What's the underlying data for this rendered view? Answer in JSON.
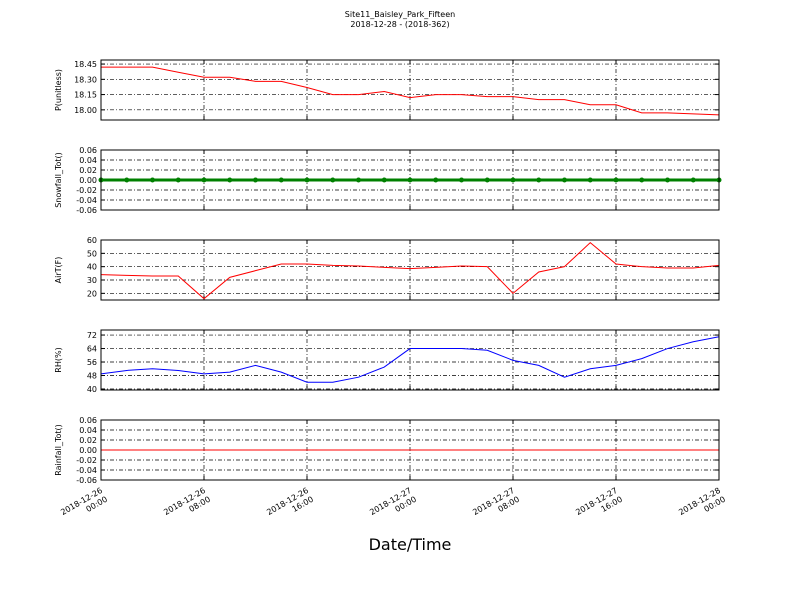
{
  "chart_data": [
    {
      "type": "line",
      "title": "Site11_Baisley_Park_Fifteen",
      "subtitle": "2018-12-28 - (2018-362)",
      "ylabel": "P(unitless)",
      "x": [
        "2018-12-26 00:00",
        "2018-12-26 02:00",
        "2018-12-26 04:00",
        "2018-12-26 06:00",
        "2018-12-26 08:00",
        "2018-12-26 10:00",
        "2018-12-26 12:00",
        "2018-12-26 14:00",
        "2018-12-26 16:00",
        "2018-12-26 18:00",
        "2018-12-26 20:00",
        "2018-12-26 22:00",
        "2018-12-27 00:00",
        "2018-12-27 02:00",
        "2018-12-27 04:00",
        "2018-12-27 06:00",
        "2018-12-27 08:00",
        "2018-12-27 10:00",
        "2018-12-27 12:00",
        "2018-12-27 14:00",
        "2018-12-27 16:00",
        "2018-12-27 18:00",
        "2018-12-27 20:00",
        "2018-12-27 22:00",
        "2018-12-28 00:00"
      ],
      "series": [
        {
          "color": "#ff0000",
          "values": [
            18.42,
            18.42,
            18.42,
            18.37,
            18.32,
            18.32,
            18.28,
            18.28,
            18.22,
            18.15,
            18.15,
            18.18,
            18.12,
            18.15,
            18.15,
            18.13,
            18.13,
            18.1,
            18.1,
            18.05,
            18.05,
            17.97,
            17.97,
            17.96,
            17.95
          ]
        }
      ],
      "xlim": [
        "2018-12-26 00:00",
        "2018-12-28 00:00"
      ],
      "ylim": [
        17.9,
        18.49
      ],
      "yticks": [
        {
          "value": 18.0,
          "label": "18.00"
        },
        18.15,
        {
          "value": 18.3,
          "label": "18.30"
        },
        18.45
      ],
      "grid": true
    },
    {
      "type": "line",
      "ylabel": "Snowfall_Tot()",
      "x": [
        "2018-12-26 00:00",
        "2018-12-26 02:00",
        "2018-12-26 04:00",
        "2018-12-26 06:00",
        "2018-12-26 08:00",
        "2018-12-26 10:00",
        "2018-12-26 12:00",
        "2018-12-26 14:00",
        "2018-12-26 16:00",
        "2018-12-26 18:00",
        "2018-12-26 20:00",
        "2018-12-26 22:00",
        "2018-12-27 00:00",
        "2018-12-27 02:00",
        "2018-12-27 04:00",
        "2018-12-27 06:00",
        "2018-12-27 08:00",
        "2018-12-27 10:00",
        "2018-12-27 12:00",
        "2018-12-27 14:00",
        "2018-12-27 16:00",
        "2018-12-27 18:00",
        "2018-12-27 20:00",
        "2018-12-27 22:00",
        "2018-12-28 00:00"
      ],
      "series": [
        {
          "color": "#008000",
          "marker": "o",
          "values": [
            0,
            0,
            0,
            0,
            0,
            0,
            0,
            0,
            0,
            0,
            0,
            0,
            0,
            0,
            0,
            0,
            0,
            0,
            0,
            0,
            0,
            0,
            0,
            0,
            0
          ]
        }
      ],
      "xlim": [
        "2018-12-26 00:00",
        "2018-12-28 00:00"
      ],
      "ylim": [
        -0.06,
        0.06
      ],
      "yticks": [
        -0.06,
        -0.04,
        -0.02,
        {
          "value": 0,
          "label": "0.00"
        },
        0.02,
        0.04,
        0.06
      ],
      "grid": true
    },
    {
      "type": "line",
      "ylabel": "AirT(F)",
      "x": [
        "2018-12-26 00:00",
        "2018-12-26 02:00",
        "2018-12-26 04:00",
        "2018-12-26 06:00",
        "2018-12-26 08:00",
        "2018-12-26 10:00",
        "2018-12-26 12:00",
        "2018-12-26 14:00",
        "2018-12-26 16:00",
        "2018-12-26 18:00",
        "2018-12-26 20:00",
        "2018-12-26 22:00",
        "2018-12-27 00:00",
        "2018-12-27 02:00",
        "2018-12-27 04:00",
        "2018-12-27 06:00",
        "2018-12-27 08:00",
        "2018-12-27 10:00",
        "2018-12-27 12:00",
        "2018-12-27 14:00",
        "2018-12-27 16:00",
        "2018-12-27 18:00",
        "2018-12-27 20:00",
        "2018-12-27 22:00",
        "2018-12-28 00:00"
      ],
      "series": [
        {
          "color": "#ff0000",
          "values": [
            34,
            33.5,
            33,
            33,
            16,
            32,
            37,
            42,
            42,
            41,
            40.5,
            39.5,
            38.5,
            39.5,
            40.5,
            40,
            20,
            36,
            40,
            58,
            42,
            40,
            39,
            39,
            41
          ]
        }
      ],
      "xlim": [
        "2018-12-26 00:00",
        "2018-12-28 00:00"
      ],
      "ylim": [
        15,
        60
      ],
      "yticks": [
        20,
        30,
        40,
        50,
        60
      ],
      "grid": true
    },
    {
      "type": "line",
      "ylabel": "RH(%)",
      "x": [
        "2018-12-26 00:00",
        "2018-12-26 02:00",
        "2018-12-26 04:00",
        "2018-12-26 06:00",
        "2018-12-26 08:00",
        "2018-12-26 10:00",
        "2018-12-26 12:00",
        "2018-12-26 14:00",
        "2018-12-26 16:00",
        "2018-12-26 18:00",
        "2018-12-26 20:00",
        "2018-12-26 22:00",
        "2018-12-27 00:00",
        "2018-12-27 02:00",
        "2018-12-27 04:00",
        "2018-12-27 06:00",
        "2018-12-27 08:00",
        "2018-12-27 10:00",
        "2018-12-27 12:00",
        "2018-12-27 14:00",
        "2018-12-27 16:00",
        "2018-12-27 18:00",
        "2018-12-27 20:00",
        "2018-12-27 22:00",
        "2018-12-28 00:00"
      ],
      "series": [
        {
          "color": "#0000ff",
          "values": [
            49,
            51,
            52,
            51,
            49,
            50,
            54,
            50,
            44,
            44,
            47,
            53,
            64,
            64,
            64,
            63,
            57,
            54,
            47,
            52,
            54,
            58,
            64,
            68,
            71
          ]
        }
      ],
      "xlim": [
        "2018-12-26 00:00",
        "2018-12-28 00:00"
      ],
      "ylim": [
        39.4,
        75
      ],
      "yticks": [
        40,
        48,
        56,
        64,
        72
      ],
      "grid": true
    },
    {
      "type": "line",
      "ylabel": "Rainfall_Tot()",
      "xlabel": "Date/Time",
      "x": [
        "2018-12-26 00:00",
        "2018-12-26 02:00",
        "2018-12-26 04:00",
        "2018-12-26 06:00",
        "2018-12-26 08:00",
        "2018-12-26 10:00",
        "2018-12-26 12:00",
        "2018-12-26 14:00",
        "2018-12-26 16:00",
        "2018-12-26 18:00",
        "2018-12-26 20:00",
        "2018-12-26 22:00",
        "2018-12-27 00:00",
        "2018-12-27 02:00",
        "2018-12-27 04:00",
        "2018-12-27 06:00",
        "2018-12-27 08:00",
        "2018-12-27 10:00",
        "2018-12-27 12:00",
        "2018-12-27 14:00",
        "2018-12-27 16:00",
        "2018-12-27 18:00",
        "2018-12-27 20:00",
        "2018-12-27 22:00",
        "2018-12-28 00:00"
      ],
      "series": [
        {
          "color": "#ff0000",
          "values": [
            0,
            0,
            0,
            0,
            0,
            0,
            0,
            0,
            0,
            0,
            0,
            0,
            0,
            0,
            0,
            0,
            0,
            0,
            0,
            0,
            0,
            0,
            0,
            0,
            0
          ]
        }
      ],
      "xlim": [
        "2018-12-26 00:00",
        "2018-12-28 00:00"
      ],
      "ylim": [
        -0.06,
        0.06
      ],
      "yticks": [
        -0.06,
        -0.04,
        -0.02,
        {
          "value": 0,
          "label": "0.00"
        },
        0.02,
        0.04,
        0.06
      ],
      "xticks": [
        {
          "value": "2018-12-26 00:00",
          "label": "2018-12-26\n00:00"
        },
        {
          "value": "2018-12-26 08:00",
          "label": "2018-12-26\n08:00"
        },
        {
          "value": "2018-12-26 16:00",
          "label": "2018-12-26\n16:00"
        },
        {
          "value": "2018-12-27 00:00",
          "label": "2018-12-27\n00:00"
        },
        {
          "value": "2018-12-27 08:00",
          "label": "2018-12-27\n08:00"
        },
        {
          "value": "2018-12-27 16:00",
          "label": "2018-12-27\n16:00"
        },
        {
          "value": "2018-12-28 00:00",
          "label": "2018-12-28\n00:00"
        }
      ],
      "grid": true
    }
  ]
}
